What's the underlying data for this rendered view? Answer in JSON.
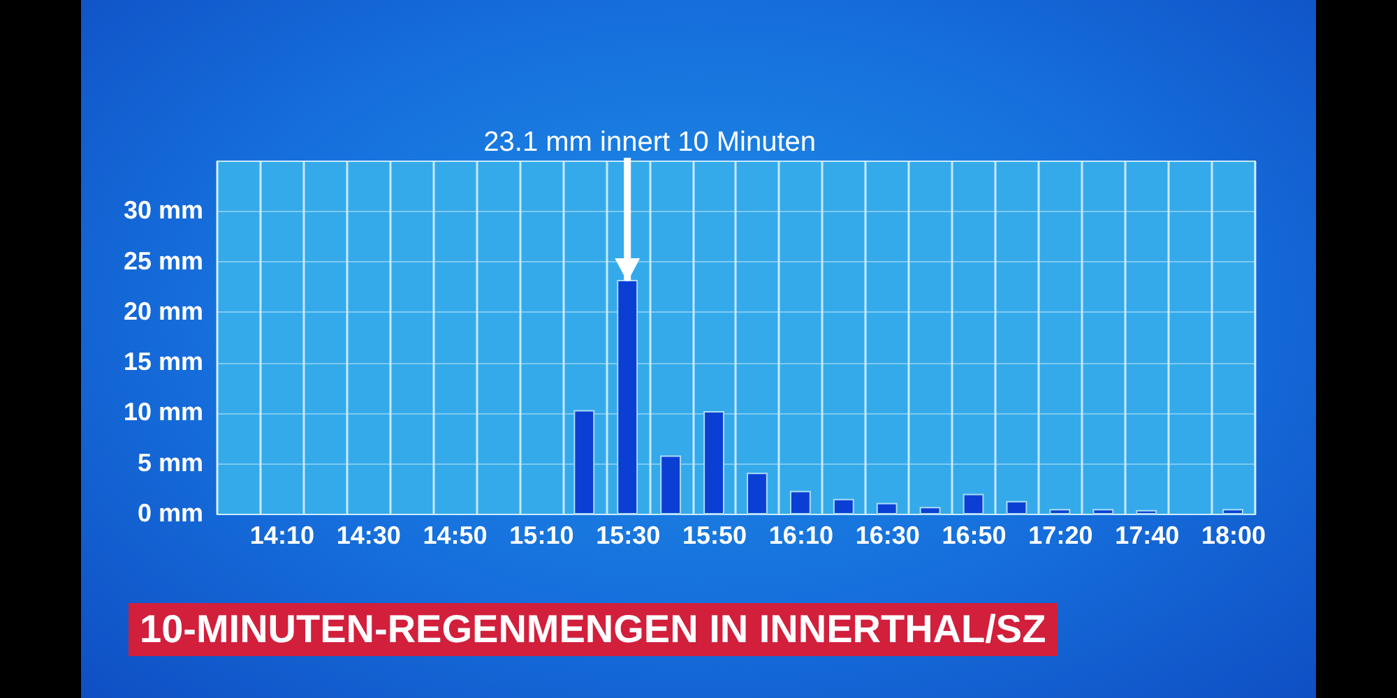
{
  "chart_data": {
    "type": "bar",
    "title": "10-MINUTEN-REGENMENGEN IN INNERTHAL/SZ",
    "categories": [
      null,
      "14:10",
      null,
      "14:30",
      null,
      "14:50",
      null,
      "15:10",
      null,
      "15:30",
      null,
      "15:50",
      null,
      "16:10",
      null,
      "16:30",
      null,
      "16:50",
      null,
      "17:20",
      null,
      "17:40",
      null,
      "18:00"
    ],
    "values": [
      null,
      null,
      null,
      null,
      null,
      null,
      null,
      null,
      10.2,
      23.1,
      5.7,
      10.1,
      4.0,
      2.2,
      1.4,
      1.0,
      0.6,
      1.9,
      1.2,
      0.4,
      0.4,
      0.3,
      null,
      0.4
    ],
    "color": "#0b3fd4",
    "ylim": [
      0,
      35
    ],
    "yticks": [
      {
        "value": 0,
        "label": "0 mm"
      },
      {
        "value": 5,
        "label": "5 mm"
      },
      {
        "value": 10,
        "label": "10 mm"
      },
      {
        "value": 15,
        "label": "15 mm"
      },
      {
        "value": 20,
        "label": "20 mm"
      },
      {
        "value": 25,
        "label": "25 mm"
      },
      {
        "value": 30,
        "label": "30 mm"
      }
    ],
    "grid": true,
    "annotations": [
      {
        "text": "23.1 mm innert 10 Minuten",
        "x": "15:30",
        "y": 23.1
      }
    ]
  }
}
